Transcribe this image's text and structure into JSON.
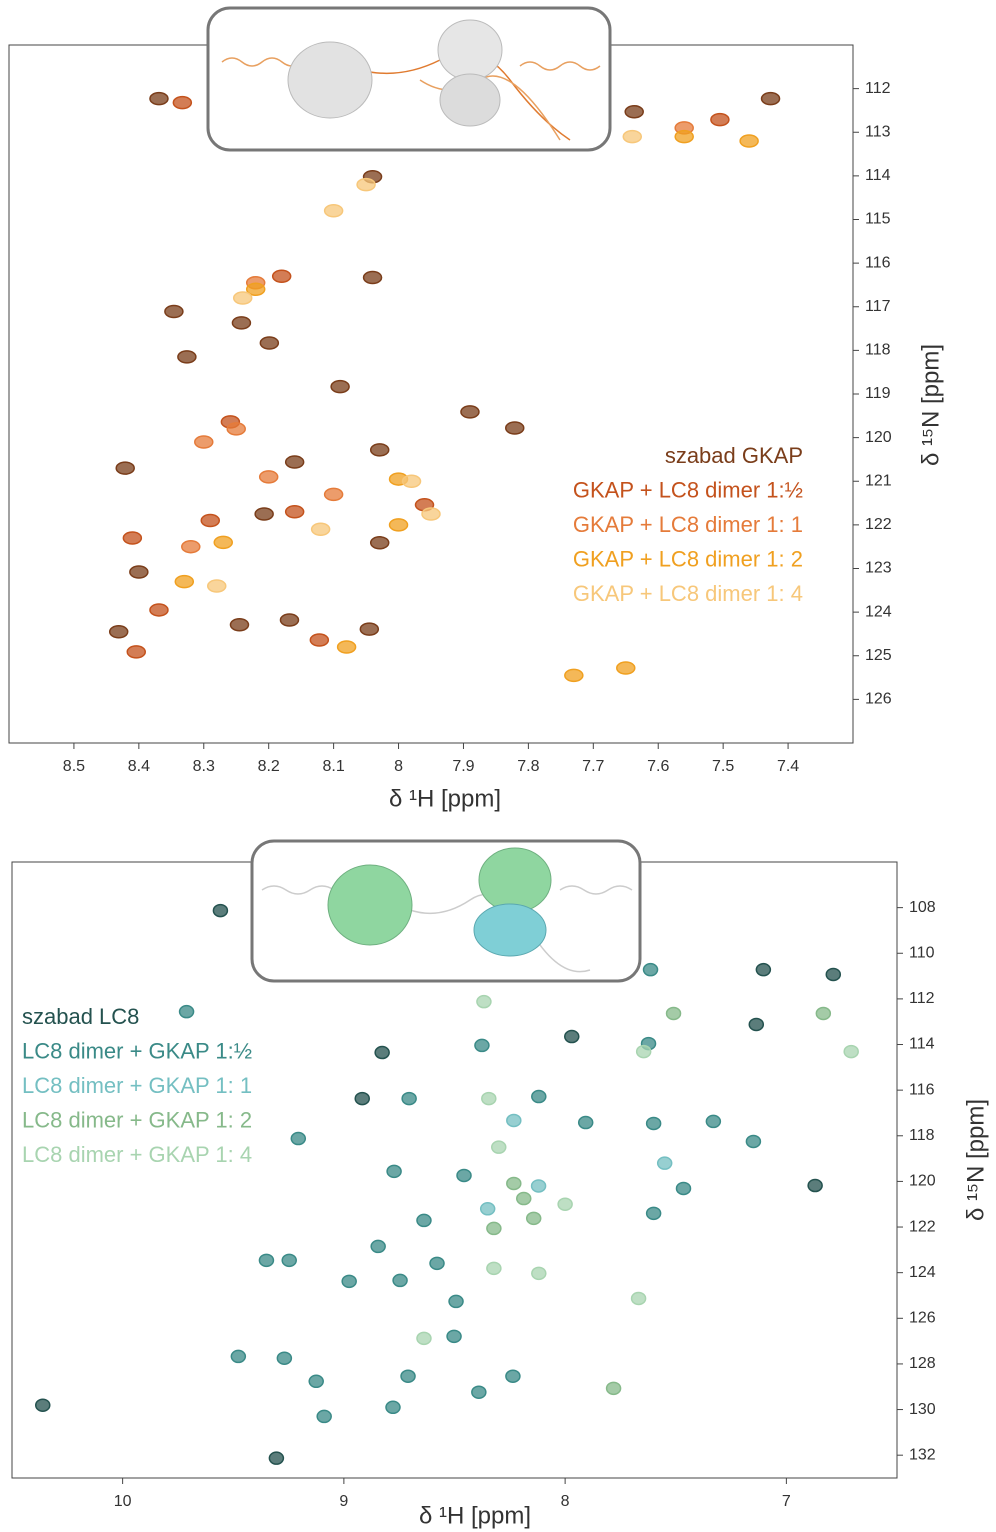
{
  "chart_data": [
    {
      "type": "scatter",
      "x_label": "δ ¹H [ppm]",
      "y_label": "δ ¹⁵N [ppm]",
      "xlim": [
        8.6,
        7.3
      ],
      "ylim": [
        127,
        111
      ],
      "xticks": [
        8.5,
        8.4,
        8.3,
        8.2,
        8.1,
        8,
        7.9,
        7.8,
        7.7,
        7.6,
        7.5,
        7.4
      ],
      "yticks": [
        112,
        113,
        114,
        115,
        116,
        117,
        118,
        119,
        120,
        121,
        122,
        123,
        124,
        125,
        126
      ],
      "legend": "right",
      "series": [
        {
          "name": "szabad GKAP",
          "color": "#7a3d1a",
          "x": [
            8.369,
            8.04,
            8.04,
            8.346,
            8.242,
            8.326,
            8.199,
            8.09,
            7.89,
            7.821,
            8.421,
            8.029,
            8.16,
            8.029,
            8.431,
            8.245,
            8.168,
            8.045,
            7.637,
            7.427,
            8.4,
            8.207
          ],
          "values": [
            112.23,
            114.02,
            116.33,
            117.11,
            117.37,
            118.15,
            117.83,
            118.83,
            119.41,
            119.78,
            120.7,
            120.28,
            120.56,
            122.41,
            124.45,
            124.29,
            124.18,
            124.39,
            112.53,
            112.23,
            123.08,
            121.75
          ]
        },
        {
          "name": "GKAP + LC8 dimer 1:½",
          "color": "#c4521c",
          "x": [
            8.333,
            8.259,
            8.369,
            8.404,
            7.96,
            8.122,
            7.505,
            8.16,
            8.29,
            8.41,
            8.18
          ],
          "values": [
            112.32,
            119.64,
            123.95,
            124.91,
            121.54,
            124.64,
            112.71,
            121.7,
            121.9,
            122.3,
            116.3
          ]
        },
        {
          "name": "GKAP + LC8 dimer 1: 1",
          "color": "#e57b3a",
          "x": [
            8.22,
            8.25,
            8.1,
            8.32,
            7.56,
            8.3,
            8.2
          ],
          "values": [
            116.45,
            119.8,
            121.3,
            122.5,
            112.9,
            120.1,
            120.9
          ]
        },
        {
          "name": "GKAP + LC8 dimer 1: 2",
          "color": "#f0a020",
          "x": [
            7.73,
            7.65,
            8.22,
            8.0,
            8.08,
            8.33,
            7.56,
            7.46,
            8.27,
            8.0
          ],
          "values": [
            125.45,
            125.28,
            116.6,
            120.95,
            124.8,
            123.3,
            113.1,
            113.2,
            122.4,
            122.0
          ]
        },
        {
          "name": "GKAP + LC8 dimer 1: 4",
          "color": "#f7c77a",
          "x": [
            7.64,
            8.24,
            7.98,
            8.28,
            8.12,
            7.95,
            8.05,
            8.1
          ],
          "values": [
            113.1,
            116.8,
            121.0,
            123.4,
            122.1,
            121.75,
            114.2,
            114.8
          ]
        }
      ]
    },
    {
      "type": "scatter",
      "x_label": "δ ¹H [ppm]",
      "y_label": "δ ¹⁵N [ppm]",
      "xlim": [
        10.5,
        6.5
      ],
      "ylim": [
        133,
        106
      ],
      "xticks": [
        10,
        9,
        8,
        7
      ],
      "yticks": [
        108,
        110,
        112,
        114,
        116,
        118,
        120,
        122,
        124,
        126,
        128,
        130,
        132
      ],
      "legend": "upper left",
      "series": [
        {
          "name": "szabad LC8",
          "color": "#24524f",
          "x": [
            9.558,
            8.827,
            7.97,
            7.104,
            7.136,
            6.788,
            6.87,
            10.361,
            9.305,
            8.917
          ],
          "values": [
            108.13,
            114.35,
            113.65,
            110.72,
            113.12,
            110.93,
            120.18,
            129.81,
            132.13,
            116.37
          ]
        },
        {
          "name": "LC8 dimer + GKAP 1:½",
          "color": "#3a8a87",
          "x": [
            9.711,
            8.376,
            7.623,
            7.614,
            7.149,
            9.206,
            8.705,
            8.119,
            7.907,
            7.6,
            7.33,
            7.465,
            7.6,
            9.35,
            9.247,
            8.845,
            8.976,
            8.746,
            8.579,
            8.493,
            9.477,
            9.269,
            9.125,
            8.71,
            8.778,
            9.089,
            8.39,
            8.236,
            8.502,
            8.773,
            8.457,
            8.638
          ],
          "values": [
            112.56,
            114.04,
            113.96,
            110.72,
            118.25,
            118.12,
            116.37,
            116.28,
            117.42,
            117.46,
            117.37,
            120.31,
            121.4,
            123.46,
            123.46,
            122.85,
            124.38,
            124.34,
            123.59,
            125.26,
            127.67,
            127.75,
            128.76,
            128.54,
            129.9,
            130.3,
            129.24,
            128.54,
            126.79,
            119.56,
            119.74,
            121.71
          ]
        },
        {
          "name": "LC8 dimer + GKAP 1: 1",
          "color": "#74bfc2",
          "x": [
            8.232,
            8.12,
            8.35,
            7.55
          ],
          "values": [
            117.33,
            120.2,
            121.2,
            119.2
          ]
        },
        {
          "name": "LC8 dimer + GKAP 1: 2",
          "color": "#86b98a",
          "x": [
            7.51,
            6.833,
            8.232,
            8.187,
            8.142,
            8.322,
            7.781
          ],
          "values": [
            112.64,
            112.64,
            120.09,
            120.75,
            121.62,
            122.06,
            129.07
          ]
        },
        {
          "name": "LC8 dimer + GKAP 1: 4",
          "color": "#a8d4b0",
          "x": [
            8.367,
            8.345,
            6.707,
            7.645,
            8.322,
            8.119,
            7.668,
            8.638,
            8.0,
            8.3
          ],
          "values": [
            112.12,
            116.37,
            114.31,
            114.31,
            123.81,
            124.03,
            125.13,
            126.88,
            121.0,
            118.5
          ]
        }
      ]
    }
  ]
}
